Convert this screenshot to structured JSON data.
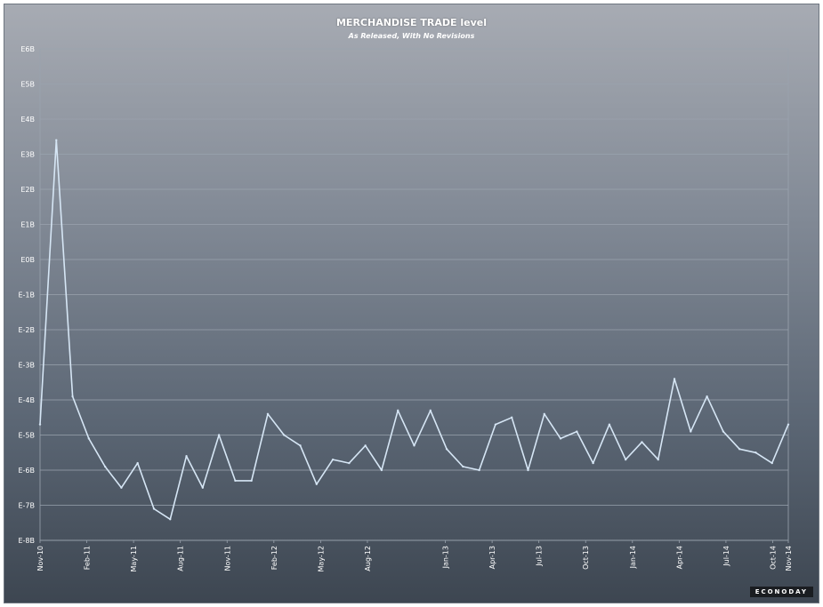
{
  "colors": {
    "line": "#d6e6f5",
    "grid": "#9aa3ae",
    "axis_text": "#ffffff"
  },
  "watermark": "ECONODAY",
  "chart_data": {
    "type": "line",
    "title": "MERCHANDISE TRADE level",
    "subtitle": "As Released, With No Revisions",
    "xlabel": "",
    "ylabel": "",
    "grid": true,
    "legend": "none",
    "ylim": [
      -8,
      6
    ],
    "y_ticks": [
      6,
      5,
      4,
      3,
      2,
      1,
      0,
      -1,
      -2,
      -3,
      -4,
      -5,
      -6,
      -7,
      -8
    ],
    "y_tick_labels": [
      "E6B",
      "E5B",
      "E4B",
      "E3B",
      "E2B",
      "E1B",
      "E0B",
      "E-1B",
      "E-2B",
      "E-3B",
      "E-4B",
      "E-5B",
      "E-6B",
      "E-7B",
      "E-8B"
    ],
    "x_tick_labels": [
      "Nov-10",
      "Feb-11",
      "May-11",
      "Aug-11",
      "Nov-11",
      "Feb-12",
      "May-12",
      "Aug-12",
      "Jan-13",
      "Apr-13",
      "Jul-13",
      "Oct-13",
      "Jan-14",
      "Apr-14",
      "Jul-14",
      "Oct-14",
      "Nov-14"
    ],
    "series": [
      {
        "values": [
          -4.7,
          3.4,
          -3.9,
          -5.1,
          -5.9,
          -6.5,
          -5.8,
          -7.1,
          -7.4,
          -5.6,
          -6.5,
          -5.0,
          -6.3,
          -6.3,
          -4.4,
          -5.0,
          -5.3,
          -6.4,
          -5.7,
          -5.8,
          -5.3,
          -6.0,
          -4.3,
          -5.3,
          -4.3,
          -5.4,
          -5.9,
          -6.0,
          -4.7,
          -4.5,
          -6.0,
          -4.4,
          -5.1,
          -4.9,
          -5.8,
          -4.7,
          -5.7,
          -5.2,
          -5.7,
          -3.4,
          -4.9,
          -3.9,
          -4.9,
          -5.4,
          -5.5,
          -5.8,
          -4.7
        ]
      }
    ]
  }
}
